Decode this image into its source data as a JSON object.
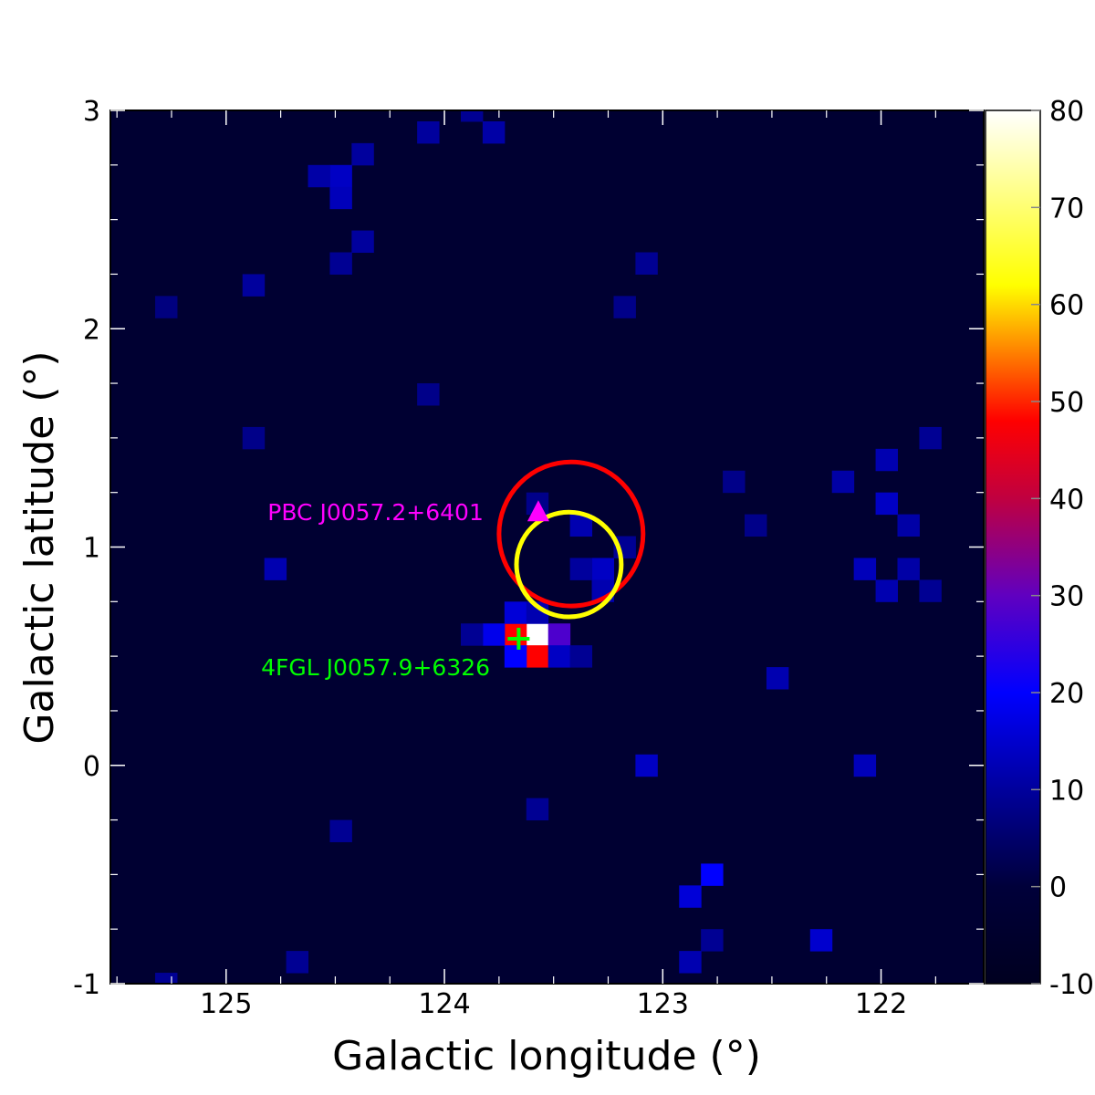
{
  "chart_data": {
    "type": "heatmap",
    "xlabel": "Galactic longitude (°)",
    "ylabel": "Galactic latitude (°)",
    "xlim": [
      125.53,
      121.53
    ],
    "ylim": [
      -1,
      3
    ],
    "x_reversed": true,
    "xticks": [
      125,
      124,
      123,
      122
    ],
    "xtick_labels": [
      "125",
      "124",
      "123",
      "122"
    ],
    "yticks": [
      3,
      2,
      1,
      0,
      -1
    ],
    "ytick_labels": [
      "3",
      "2",
      "1",
      "0",
      "-1"
    ],
    "pixel_size_deg": 0.1,
    "background_value": -3,
    "colorbar": {
      "range": [
        -10,
        80
      ],
      "ticks": [
        80,
        70,
        60,
        50,
        40,
        30,
        20,
        10,
        0,
        -10
      ],
      "tick_labels": [
        "80",
        "70",
        "60",
        "50",
        "40",
        "30",
        "20",
        "10",
        "0",
        "-10"
      ],
      "stops": [
        {
          "value": -10,
          "color": "#000020"
        },
        {
          "value": 0,
          "color": "#00003a"
        },
        {
          "value": 20,
          "color": "#0000ff"
        },
        {
          "value": 30,
          "color": "#6000c0"
        },
        {
          "value": 40,
          "color": "#c00040"
        },
        {
          "value": 48,
          "color": "#ff0000"
        },
        {
          "value": 62,
          "color": "#ffff00"
        },
        {
          "value": 80,
          "color": "#ffffff"
        }
      ]
    },
    "hotspots": [
      {
        "l": 123.575,
        "b": 0.6,
        "value": 80
      },
      {
        "l": 123.675,
        "b": 0.6,
        "value": 48
      },
      {
        "l": 123.575,
        "b": 0.5,
        "value": 48
      },
      {
        "l": 123.475,
        "b": 0.6,
        "value": 28
      },
      {
        "l": 123.775,
        "b": 0.6,
        "value": 18
      },
      {
        "l": 123.675,
        "b": 0.5,
        "value": 20
      },
      {
        "l": 123.675,
        "b": 0.7,
        "value": 16
      },
      {
        "l": 123.475,
        "b": 0.5,
        "value": 14
      },
      {
        "l": 123.575,
        "b": 0.7,
        "value": 12
      },
      {
        "l": 123.375,
        "b": 0.5,
        "value": 9
      },
      {
        "l": 123.875,
        "b": 0.6,
        "value": 9
      },
      {
        "l": 123.375,
        "b": 1.1,
        "value": 12
      },
      {
        "l": 123.275,
        "b": 0.9,
        "value": 14
      },
      {
        "l": 123.275,
        "b": 0.8,
        "value": 12
      },
      {
        "l": 123.375,
        "b": 0.9,
        "value": 10
      },
      {
        "l": 123.175,
        "b": 1.0,
        "value": 9
      },
      {
        "l": 123.575,
        "b": 1.2,
        "value": 8
      },
      {
        "l": 124.475,
        "b": 2.7,
        "value": 14
      },
      {
        "l": 124.475,
        "b": 2.6,
        "value": 13
      },
      {
        "l": 124.575,
        "b": 2.7,
        "value": 11
      },
      {
        "l": 124.375,
        "b": 2.8,
        "value": 10
      },
      {
        "l": 124.475,
        "b": 2.3,
        "value": 9
      },
      {
        "l": 124.375,
        "b": 2.4,
        "value": 10
      },
      {
        "l": 124.075,
        "b": 2.9,
        "value": 10
      },
      {
        "l": 123.775,
        "b": 2.9,
        "value": 11
      },
      {
        "l": 123.875,
        "b": 3.0,
        "value": 9
      },
      {
        "l": 124.875,
        "b": 2.2,
        "value": 10
      },
      {
        "l": 125.275,
        "b": 2.1,
        "value": 7
      },
      {
        "l": 121.975,
        "b": 1.4,
        "value": 12
      },
      {
        "l": 121.975,
        "b": 1.2,
        "value": 14
      },
      {
        "l": 121.875,
        "b": 1.1,
        "value": 11
      },
      {
        "l": 121.875,
        "b": 0.9,
        "value": 11
      },
      {
        "l": 122.075,
        "b": 0.9,
        "value": 13
      },
      {
        "l": 121.975,
        "b": 0.8,
        "value": 12
      },
      {
        "l": 122.175,
        "b": 1.3,
        "value": 11
      },
      {
        "l": 121.775,
        "b": 1.5,
        "value": 9
      },
      {
        "l": 121.775,
        "b": 0.8,
        "value": 9
      },
      {
        "l": 122.575,
        "b": 1.1,
        "value": 8
      },
      {
        "l": 122.675,
        "b": 1.3,
        "value": 8
      },
      {
        "l": 122.775,
        "b": -0.5,
        "value": 20
      },
      {
        "l": 122.875,
        "b": -0.6,
        "value": 16
      },
      {
        "l": 122.875,
        "b": -0.9,
        "value": 12
      },
      {
        "l": 122.775,
        "b": -0.8,
        "value": 9
      },
      {
        "l": 122.275,
        "b": -0.8,
        "value": 15
      },
      {
        "l": 123.075,
        "b": 0.0,
        "value": 14
      },
      {
        "l": 122.075,
        "b": 0.0,
        "value": 13
      },
      {
        "l": 122.475,
        "b": 0.4,
        "value": 12
      },
      {
        "l": 123.575,
        "b": -0.2,
        "value": 9
      },
      {
        "l": 124.775,
        "b": 0.9,
        "value": 12
      },
      {
        "l": 124.875,
        "b": 1.5,
        "value": 8
      },
      {
        "l": 124.475,
        "b": -0.3,
        "value": 9
      },
      {
        "l": 124.675,
        "b": -0.9,
        "value": 9
      },
      {
        "l": 123.075,
        "b": 2.3,
        "value": 9
      },
      {
        "l": 123.175,
        "b": 2.1,
        "value": 8
      },
      {
        "l": 124.075,
        "b": 1.7,
        "value": 8
      },
      {
        "l": 125.275,
        "b": -1.0,
        "value": 9
      }
    ],
    "overlays": [
      {
        "type": "circle",
        "center_l": 123.42,
        "center_b": 1.06,
        "radius_deg": 0.33,
        "color": "#ff0000"
      },
      {
        "type": "circle",
        "center_l": 123.43,
        "center_b": 0.92,
        "radius_deg": 0.24,
        "color": "#ffff00"
      },
      {
        "type": "triangle",
        "l": 123.57,
        "b": 1.16,
        "color": "#ff00ff"
      },
      {
        "type": "cross",
        "l": 123.66,
        "b": 0.58,
        "color": "#00ff00"
      }
    ],
    "annotations": [
      {
        "text": "PBC J0057.2+6401",
        "l": 124.81,
        "b": 1.16,
        "color": "#ff00ff"
      },
      {
        "text": "4FGL J0057.9+6326",
        "l": 124.84,
        "b": 0.45,
        "color": "#00ff00"
      }
    ]
  }
}
